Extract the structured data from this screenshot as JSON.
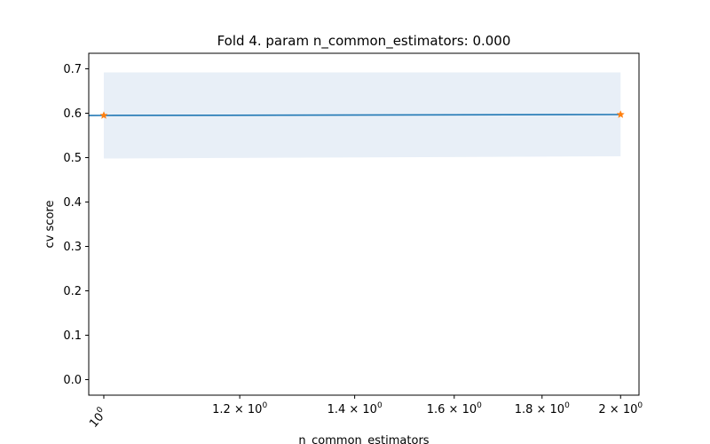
{
  "chart_data": {
    "type": "line",
    "title": "Fold 4. param n_common_estimators: 0.000",
    "xlabel": "n_common_estimators",
    "ylabel": "cv score",
    "xscale": "log",
    "xlim": [
      0.98,
      2.05
    ],
    "ylim": [
      -0.035,
      0.735
    ],
    "x_ticks": [
      {
        "value": 1.0,
        "mant": "10",
        "exp": "0"
      },
      {
        "value": 1.2,
        "mant": "1.2 × 10",
        "exp": "0"
      },
      {
        "value": 1.4,
        "mant": "1.4 × 10",
        "exp": "0"
      },
      {
        "value": 1.6,
        "mant": "1.6 × 10",
        "exp": "0"
      },
      {
        "value": 1.8,
        "mant": "1.8 × 10",
        "exp": "0"
      },
      {
        "value": 2.0,
        "mant": "2 × 10",
        "exp": "0"
      }
    ],
    "y_ticks": [
      "0.0",
      "0.1",
      "0.2",
      "0.3",
      "0.4",
      "0.5",
      "0.6",
      "0.7"
    ],
    "series": [
      {
        "x": [
          1,
          2
        ],
        "mean": [
          0.595,
          0.597
        ],
        "upper": [
          0.692,
          0.692
        ],
        "lower": [
          0.498,
          0.503
        ],
        "line_color": "#1f77b4",
        "band_color": "#e8eff7",
        "marker_color": "#ff7f0e",
        "marker": "star"
      }
    ],
    "grid": false
  }
}
